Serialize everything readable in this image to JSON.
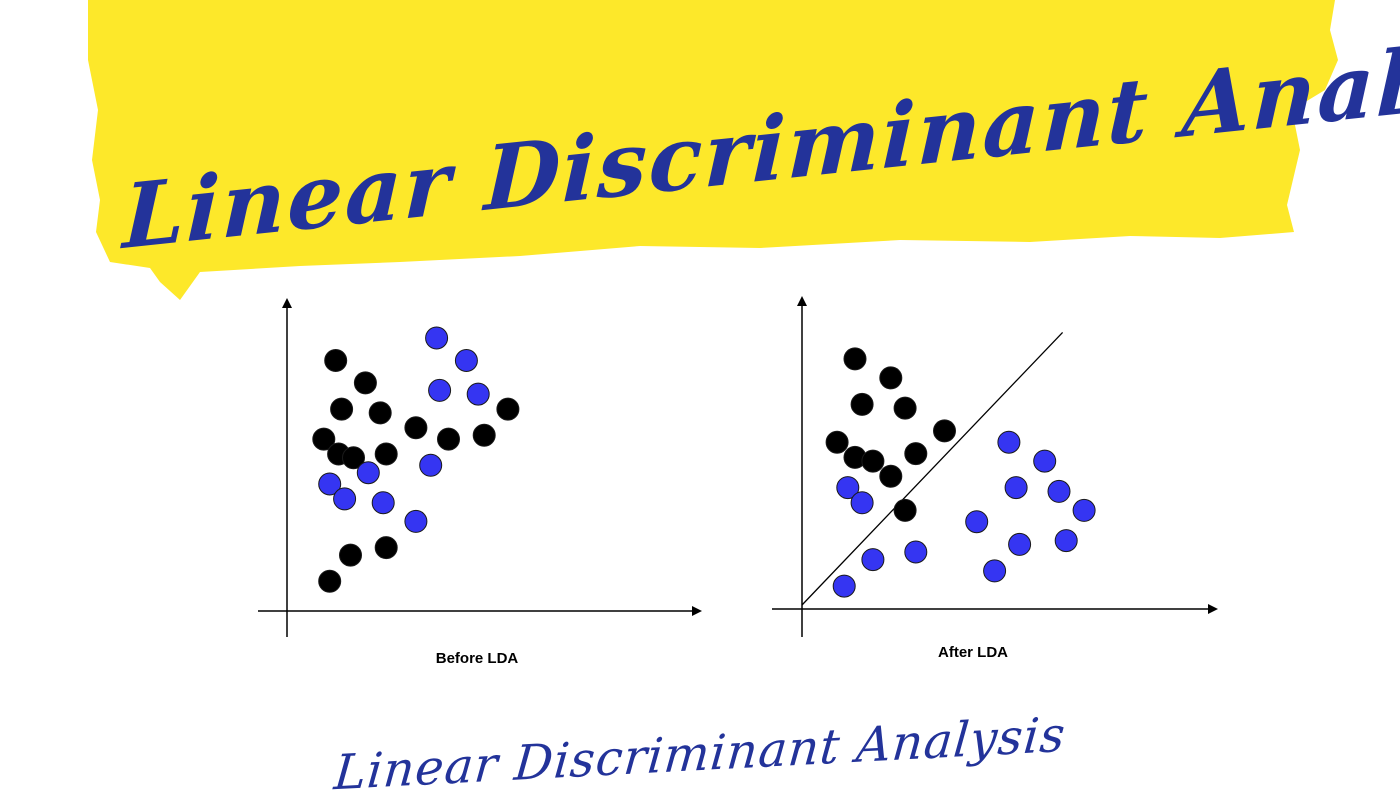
{
  "banner": {
    "title": "Linear Discriminant Analysis",
    "background_color": "#fde82a",
    "text_color": "#23339a"
  },
  "footer": {
    "title": "Linear Discriminant Analysis",
    "text_color": "#23339a"
  },
  "colors": {
    "class_a": "#000000",
    "class_b": "#3535f2",
    "axis": "#000000"
  },
  "chart_data": [
    {
      "type": "scatter",
      "caption": "Before LDA",
      "xlim": [
        0,
        10
      ],
      "ylim": [
        0,
        7
      ],
      "decision_boundary": null,
      "series": [
        {
          "color": "#000000",
          "points": [
            [
              1.1,
              6.4
            ],
            [
              2.1,
              5.8
            ],
            [
              1.3,
              5.1
            ],
            [
              2.6,
              5.0
            ],
            [
              0.7,
              4.3
            ],
            [
              1.2,
              3.9
            ],
            [
              1.7,
              3.8
            ],
            [
              2.8,
              3.9
            ],
            [
              3.8,
              4.6
            ],
            [
              4.9,
              4.3
            ],
            [
              6.1,
              4.4
            ],
            [
              6.9,
              5.1
            ],
            [
              1.6,
              1.2
            ],
            [
              2.8,
              1.4
            ],
            [
              0.9,
              0.5
            ]
          ]
        },
        {
          "color": "#3535f2",
          "points": [
            [
              4.5,
              7.0
            ],
            [
              5.5,
              6.4
            ],
            [
              4.6,
              5.6
            ],
            [
              5.9,
              5.5
            ],
            [
              0.9,
              3.1
            ],
            [
              1.4,
              2.7
            ],
            [
              2.2,
              3.4
            ],
            [
              2.7,
              2.6
            ],
            [
              4.3,
              3.6
            ],
            [
              3.8,
              2.1
            ]
          ]
        }
      ]
    },
    {
      "type": "scatter",
      "caption": "After LDA",
      "xlim": [
        0,
        10
      ],
      "ylim": [
        0,
        7
      ],
      "decision_boundary": [
        [
          0,
          0
        ],
        [
          7.0,
          7.2
        ]
      ],
      "series": [
        {
          "color": "#000000",
          "points": [
            [
              1.2,
              6.5
            ],
            [
              2.2,
              6.0
            ],
            [
              1.4,
              5.3
            ],
            [
              2.6,
              5.2
            ],
            [
              0.7,
              4.3
            ],
            [
              1.2,
              3.9
            ],
            [
              1.7,
              3.8
            ],
            [
              2.2,
              3.4
            ],
            [
              2.9,
              4.0
            ],
            [
              3.7,
              4.6
            ],
            [
              2.6,
              2.5
            ]
          ]
        },
        {
          "color": "#3535f2",
          "points": [
            [
              1.0,
              3.1
            ],
            [
              1.4,
              2.7
            ],
            [
              1.7,
              1.2
            ],
            [
              2.9,
              1.4
            ],
            [
              0.9,
              0.5
            ],
            [
              5.5,
              4.3
            ],
            [
              6.5,
              3.8
            ],
            [
              5.7,
              3.1
            ],
            [
              6.9,
              3.0
            ],
            [
              4.6,
              2.2
            ],
            [
              7.6,
              2.5
            ],
            [
              5.8,
              1.6
            ],
            [
              7.1,
              1.7
            ],
            [
              5.1,
              0.9
            ]
          ]
        }
      ]
    }
  ]
}
